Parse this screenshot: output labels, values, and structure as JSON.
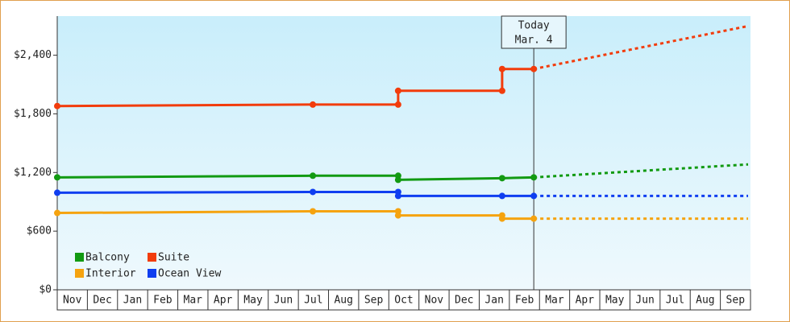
{
  "chart_data": {
    "type": "line",
    "categories": [
      "Nov",
      "Dec",
      "Jan",
      "Feb",
      "Mar",
      "Apr",
      "May",
      "Jun",
      "Jul",
      "Aug",
      "Sep",
      "Oct",
      "Nov",
      "Dec",
      "Jan",
      "Feb",
      "Mar",
      "Apr",
      "May",
      "Jun",
      "Jul",
      "Aug",
      "Sep"
    ],
    "xlim": [
      0,
      23
    ],
    "ylim": [
      0,
      2800
    ],
    "yticks": [
      {
        "value": 0,
        "label": "$0"
      },
      {
        "value": 600,
        "label": "$600"
      },
      {
        "value": 1200,
        "label": "$1,200"
      },
      {
        "value": 1800,
        "label": "$1,800"
      },
      {
        "value": 2400,
        "label": "$2,400"
      }
    ],
    "grid": false,
    "legend": "lower left",
    "today": {
      "x": 15.81,
      "label": "Today",
      "date": "Mar. 4"
    },
    "series": [
      {
        "name": "Balcony",
        "color": "#129a12",
        "x": [
          0,
          8.48,
          11.31,
          11.31,
          14.76,
          15.81
        ],
        "values": [
          1150,
          1167,
          1167,
          1125,
          1142,
          1150
        ],
        "projection": {
          "x": [
            15.81,
            22.92
          ],
          "values": [
            1150,
            1283
          ]
        }
      },
      {
        "name": "Suite",
        "color": "#f23c0c",
        "x": [
          0,
          8.48,
          11.31,
          11.31,
          14.76,
          14.76,
          15.81
        ],
        "values": [
          1880,
          1895,
          1895,
          2036,
          2036,
          2259,
          2259
        ],
        "projection": {
          "x": [
            15.81,
            22.92
          ],
          "values": [
            2259,
            2698
          ]
        }
      },
      {
        "name": "Interior",
        "color": "#f5a30f",
        "x": [
          0,
          8.48,
          11.31,
          11.31,
          14.76,
          14.76,
          15.81
        ],
        "values": [
          786,
          803,
          803,
          761,
          761,
          728,
          728
        ],
        "projection": {
          "x": [
            15.81,
            22.92
          ],
          "values": [
            728,
            728
          ]
        }
      },
      {
        "name": "Ocean View",
        "color": "#0f3ef0",
        "x": [
          0,
          8.48,
          11.31,
          11.31,
          14.76,
          15.81
        ],
        "values": [
          993,
          1001,
          1001,
          960,
          960,
          960
        ],
        "projection": {
          "x": [
            15.81,
            22.92
          ],
          "values": [
            960,
            960
          ]
        }
      }
    ]
  }
}
